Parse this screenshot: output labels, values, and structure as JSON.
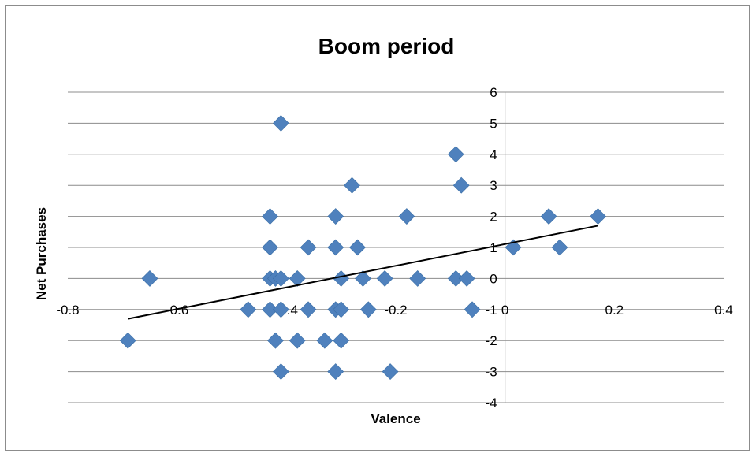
{
  "chart_data": {
    "type": "scatter",
    "title": "Boom period",
    "xlabel": "Valence",
    "ylabel": "Net Purchases",
    "xlim": [
      -0.8,
      0.4
    ],
    "ylim": [
      -4,
      6
    ],
    "x_ticks": [
      "-0.8",
      "-0.6",
      "-0.4",
      "-0.2",
      "0",
      "0.2",
      "0.4"
    ],
    "y_ticks": [
      "-4",
      "-3",
      "-2",
      "-1",
      "0",
      "1",
      "2",
      "3",
      "4",
      "5",
      "6"
    ],
    "grid": "horizontal",
    "legend": "none",
    "marker_color": "#4F81BD",
    "marker_shape": "diamond",
    "points": [
      {
        "x": -0.41,
        "y": 5
      },
      {
        "x": -0.09,
        "y": 4
      },
      {
        "x": -0.28,
        "y": 3
      },
      {
        "x": -0.08,
        "y": 3
      },
      {
        "x": -0.43,
        "y": 2
      },
      {
        "x": -0.31,
        "y": 2
      },
      {
        "x": -0.18,
        "y": 2
      },
      {
        "x": 0.08,
        "y": 2
      },
      {
        "x": 0.17,
        "y": 2
      },
      {
        "x": -0.43,
        "y": 1
      },
      {
        "x": -0.36,
        "y": 1
      },
      {
        "x": -0.31,
        "y": 1
      },
      {
        "x": -0.27,
        "y": 1
      },
      {
        "x": 0.015,
        "y": 1
      },
      {
        "x": 0.1,
        "y": 1
      },
      {
        "x": -0.65,
        "y": 0
      },
      {
        "x": -0.43,
        "y": 0
      },
      {
        "x": -0.42,
        "y": 0
      },
      {
        "x": -0.41,
        "y": 0
      },
      {
        "x": -0.38,
        "y": 0
      },
      {
        "x": -0.3,
        "y": 0
      },
      {
        "x": -0.26,
        "y": 0
      },
      {
        "x": -0.22,
        "y": 0
      },
      {
        "x": -0.16,
        "y": 0
      },
      {
        "x": -0.09,
        "y": 0
      },
      {
        "x": -0.07,
        "y": 0
      },
      {
        "x": -0.47,
        "y": -1
      },
      {
        "x": -0.43,
        "y": -1
      },
      {
        "x": -0.41,
        "y": -1
      },
      {
        "x": -0.36,
        "y": -1
      },
      {
        "x": -0.31,
        "y": -1
      },
      {
        "x": -0.3,
        "y": -1
      },
      {
        "x": -0.25,
        "y": -1
      },
      {
        "x": -0.06,
        "y": -1
      },
      {
        "x": -0.69,
        "y": -2
      },
      {
        "x": -0.42,
        "y": -2
      },
      {
        "x": -0.38,
        "y": -2
      },
      {
        "x": -0.33,
        "y": -2
      },
      {
        "x": -0.3,
        "y": -2
      },
      {
        "x": -0.41,
        "y": -3
      },
      {
        "x": -0.31,
        "y": -3
      },
      {
        "x": -0.21,
        "y": -3
      }
    ],
    "trendline": {
      "type": "linear",
      "color": "#000000",
      "x": [
        -0.69,
        0.17
      ],
      "y": [
        -1.3,
        1.7
      ]
    }
  }
}
